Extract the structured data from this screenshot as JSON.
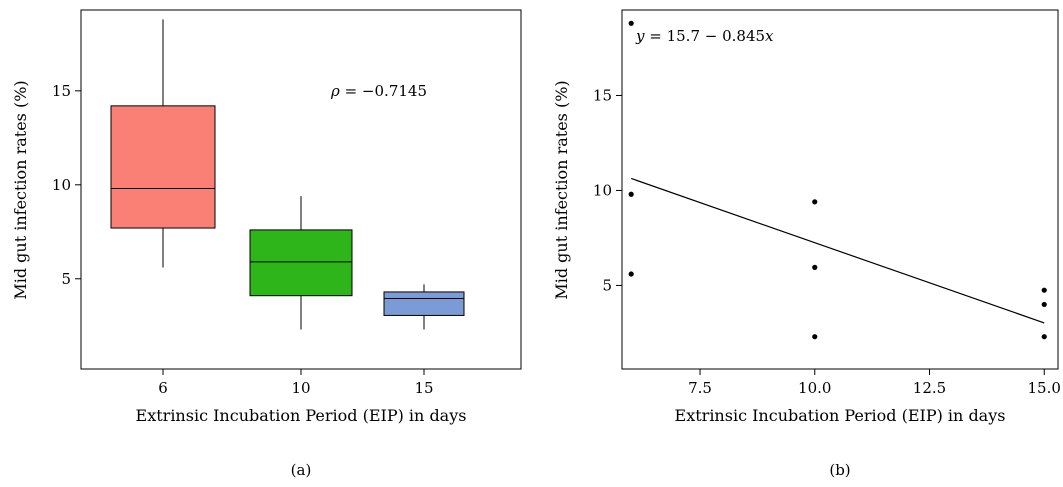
{
  "chart_data": [
    {
      "type": "box",
      "panel_label": "(a)",
      "xlabel": "Extrinsic Incubation Period (EIP) in days",
      "ylabel": "Mid gut infection rates (%)",
      "ylim": [
        0.2,
        19.3
      ],
      "yticks": [
        5,
        10,
        15
      ],
      "grid": false,
      "annotation": {
        "symbol": "ρ",
        "text": " = −0.7145"
      },
      "categories": [
        "6",
        "10",
        "15"
      ],
      "boxes": [
        {
          "category": "6",
          "min": 5.6,
          "q1": 7.7,
          "median": 9.8,
          "q3": 14.2,
          "max": 18.8,
          "color": "#fa7f74"
        },
        {
          "category": "10",
          "min": 2.3,
          "q1": 4.1,
          "median": 5.9,
          "q3": 7.6,
          "max": 9.4,
          "color": "#2db51a"
        },
        {
          "category": "15",
          "min": 2.3,
          "q1": 3.05,
          "median": 3.95,
          "q3": 4.3,
          "max": 4.7,
          "color": "#7a9bd6"
        }
      ]
    },
    {
      "type": "scatter",
      "panel_label": "(b)",
      "xlabel": "Extrinsic Incubation Period (EIP) in days",
      "ylabel": "Mid gut infection rates (%)",
      "xlim": [
        5.8,
        15.3
      ],
      "ylim": [
        0.6,
        19.5
      ],
      "xticks": [
        "7.5",
        "10.0",
        "12.5",
        "15.0"
      ],
      "yticks": [
        5,
        10,
        15
      ],
      "grid": false,
      "annotation": {
        "var": "y",
        "text": " = 15.7 − 0.845",
        "var2": "x"
      },
      "points": [
        {
          "x": 6,
          "y": 18.8
        },
        {
          "x": 6,
          "y": 9.8
        },
        {
          "x": 6,
          "y": 5.6
        },
        {
          "x": 10,
          "y": 9.4
        },
        {
          "x": 10,
          "y": 5.95
        },
        {
          "x": 10,
          "y": 2.3
        },
        {
          "x": 15,
          "y": 4.75
        },
        {
          "x": 15,
          "y": 4.0
        },
        {
          "x": 15,
          "y": 2.3
        }
      ],
      "fit": {
        "intercept": 15.7,
        "slope": -0.845,
        "x_range": [
          6,
          15
        ]
      }
    }
  ]
}
